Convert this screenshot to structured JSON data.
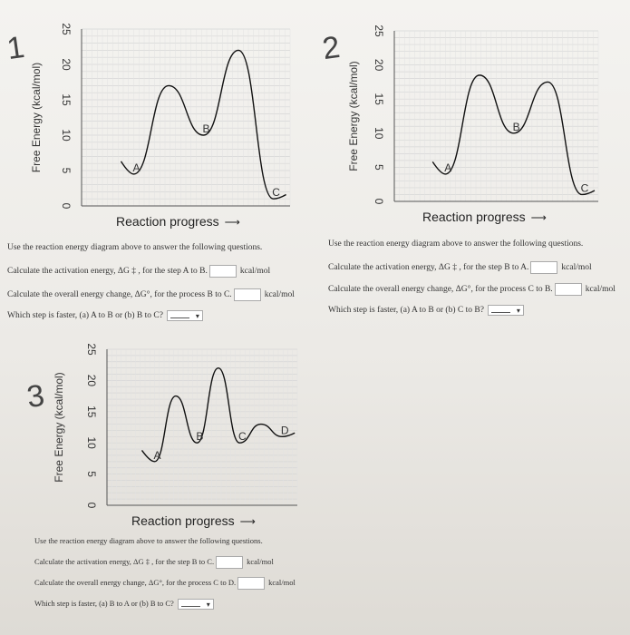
{
  "panels": [
    {
      "number": "1",
      "chart_data": {
        "type": "line",
        "ylabel": "Free Energy (kcal/mol)",
        "xlabel": "Reaction progress",
        "yticks": [
          0,
          5,
          10,
          15,
          20,
          25
        ],
        "ylim": [
          0,
          25
        ],
        "grid": true,
        "states": [
          {
            "label": "A",
            "energy": 4.5
          },
          {
            "label": "B",
            "energy": 10
          },
          {
            "label": "C",
            "energy": 1
          }
        ],
        "peaks": [
          17,
          22
        ]
      },
      "questions": {
        "intro": "Use the reaction energy diagram above to answer the following questions.",
        "q1": "Calculate the activation energy, ΔG ‡ , for the step A to B.",
        "q2": "Calculate the overall energy change, ΔG°, for the process B to C.",
        "q3": "Which step is faster, (a) A to B or (b) B to C?",
        "unit": "kcal/mol"
      }
    },
    {
      "number": "2",
      "chart_data": {
        "type": "line",
        "ylabel": "Free Energy (kcal/mol)",
        "xlabel": "Reaction progress",
        "yticks": [
          0,
          5,
          10,
          15,
          20,
          25
        ],
        "ylim": [
          0,
          25
        ],
        "grid": true,
        "states": [
          {
            "label": "A",
            "energy": 4
          },
          {
            "label": "B",
            "energy": 10
          },
          {
            "label": "C",
            "energy": 1
          }
        ],
        "peaks": [
          18.5,
          17.5
        ]
      },
      "questions": {
        "intro": "Use the reaction energy diagram above to answer the following questions.",
        "q1": "Calculate the activation energy, ΔG ‡ , for the step B to A.",
        "q2": "Calculate the overall energy change, ΔG°, for the process C to B.",
        "q3": "Which step is faster, (a) A to B or (b) C to B?",
        "unit": "kcal/mol"
      }
    },
    {
      "number": "3",
      "chart_data": {
        "type": "line",
        "ylabel": "Free Energy (kcal/mol)",
        "xlabel": "Reaction progress",
        "yticks": [
          0,
          5,
          10,
          15,
          20,
          25
        ],
        "ylim": [
          0,
          25
        ],
        "grid": true,
        "states": [
          {
            "label": "A",
            "energy": 7
          },
          {
            "label": "B",
            "energy": 10
          },
          {
            "label": "C",
            "energy": 10
          },
          {
            "label": "D",
            "energy": 11
          }
        ],
        "peaks": [
          17.5,
          22,
          13
        ]
      },
      "questions": {
        "intro": "Use the reaction energy diagram above to answer the following questions.",
        "q1": "Calculate the activation energy, ΔG ‡ , for the step B to C.",
        "q2": "Calculate the overall energy change, ΔG°, for the process C to D.",
        "q3": "Which step is faster, (a) B to A or (b) B to C?",
        "unit": "kcal/mol"
      }
    }
  ]
}
